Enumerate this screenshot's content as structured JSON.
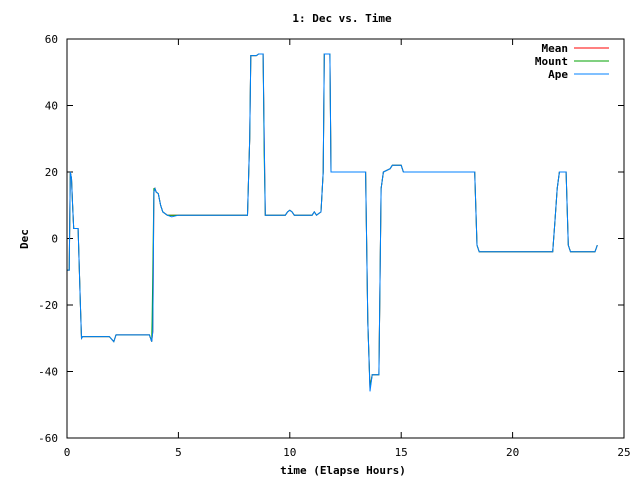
{
  "chart_data": {
    "type": "line",
    "title": "1: Dec vs. Time",
    "xlabel": "time (Elapse Hours)",
    "ylabel": "Dec",
    "xlim": [
      0,
      25
    ],
    "ylim": [
      -60,
      60
    ],
    "xticks": [
      0,
      5,
      10,
      15,
      20,
      25
    ],
    "yticks": [
      -60,
      -40,
      -20,
      0,
      20,
      40,
      60
    ],
    "grid": false,
    "legend_position": "top-right",
    "series": [
      {
        "name": "Mean",
        "color": "#ff0000",
        "points": [
          [
            0,
            -9.5
          ],
          [
            0.1,
            -9.5
          ],
          [
            0.15,
            20
          ],
          [
            0.2,
            18
          ],
          [
            0.25,
            10
          ],
          [
            0.3,
            3
          ],
          [
            0.4,
            3
          ],
          [
            0.5,
            3
          ],
          [
            0.6,
            -20
          ],
          [
            0.65,
            -30
          ],
          [
            0.7,
            -29.5
          ],
          [
            1,
            -29.5
          ],
          [
            1.5,
            -29.5
          ],
          [
            1.9,
            -29.5
          ],
          [
            2.1,
            -31
          ],
          [
            2.2,
            -29
          ],
          [
            2.5,
            -29
          ],
          [
            3,
            -29
          ],
          [
            3.5,
            -29
          ],
          [
            3.7,
            -29
          ],
          [
            3.8,
            -31
          ],
          [
            3.85,
            -28
          ],
          [
            3.9,
            14
          ],
          [
            3.95,
            15
          ],
          [
            4,
            14
          ],
          [
            4.1,
            13.5
          ],
          [
            4.2,
            10
          ],
          [
            4.3,
            8
          ],
          [
            4.5,
            7
          ],
          [
            5,
            7
          ],
          [
            6,
            7
          ],
          [
            7,
            7
          ],
          [
            7.8,
            7
          ],
          [
            8.1,
            7
          ],
          [
            8.2,
            30
          ],
          [
            8.25,
            55
          ],
          [
            8.5,
            55
          ],
          [
            8.6,
            55.5
          ],
          [
            8.8,
            55.5
          ],
          [
            8.85,
            30
          ],
          [
            8.9,
            7
          ],
          [
            9.5,
            7
          ],
          [
            9.8,
            7
          ],
          [
            9.9,
            8
          ],
          [
            10,
            8.5
          ],
          [
            10.1,
            8
          ],
          [
            10.2,
            7
          ],
          [
            10.5,
            7
          ],
          [
            11,
            7
          ],
          [
            11.1,
            8
          ],
          [
            11.2,
            7
          ],
          [
            11.4,
            8
          ],
          [
            11.5,
            20
          ],
          [
            11.55,
            55.5
          ],
          [
            11.8,
            55.5
          ],
          [
            11.85,
            20
          ],
          [
            12,
            20
          ],
          [
            13,
            20
          ],
          [
            13.4,
            20
          ],
          [
            13.5,
            -25
          ],
          [
            13.6,
            -45
          ],
          [
            13.7,
            -41
          ],
          [
            14,
            -41
          ],
          [
            14.1,
            15
          ],
          [
            14.2,
            20
          ],
          [
            14.5,
            21
          ],
          [
            14.6,
            22
          ],
          [
            15,
            22
          ],
          [
            15.1,
            20
          ],
          [
            16,
            20
          ],
          [
            17,
            20
          ],
          [
            18,
            20
          ],
          [
            18.3,
            20
          ],
          [
            18.4,
            -2
          ],
          [
            18.5,
            -4
          ],
          [
            19,
            -4
          ],
          [
            20,
            -4
          ],
          [
            21,
            -4
          ],
          [
            21.8,
            -4
          ],
          [
            21.9,
            5
          ],
          [
            22,
            15
          ],
          [
            22.1,
            20
          ],
          [
            22.4,
            20
          ],
          [
            22.5,
            -2
          ],
          [
            22.6,
            -4
          ],
          [
            23,
            -4
          ],
          [
            23.5,
            -4
          ],
          [
            23.7,
            -4
          ],
          [
            23.8,
            -2
          ]
        ]
      },
      {
        "name": "Mount",
        "color": "#00a000",
        "points": [
          [
            0,
            -9.5
          ],
          [
            0.1,
            -9.5
          ],
          [
            0.15,
            20
          ],
          [
            0.2,
            18
          ],
          [
            0.25,
            10
          ],
          [
            0.3,
            3
          ],
          [
            0.4,
            3
          ],
          [
            0.5,
            3
          ],
          [
            0.6,
            -20
          ],
          [
            0.65,
            -30
          ],
          [
            0.7,
            -29.5
          ],
          [
            1,
            -29.5
          ],
          [
            1.5,
            -29.5
          ],
          [
            1.9,
            -29.5
          ],
          [
            2.1,
            -31
          ],
          [
            2.2,
            -29
          ],
          [
            2.5,
            -29
          ],
          [
            3,
            -29
          ],
          [
            3.5,
            -29
          ],
          [
            3.7,
            -29
          ],
          [
            3.8,
            -31
          ],
          [
            3.82,
            -25
          ],
          [
            3.85,
            -10
          ],
          [
            3.9,
            15
          ],
          [
            3.95,
            15
          ],
          [
            4,
            14
          ],
          [
            4.1,
            13.5
          ],
          [
            4.2,
            10
          ],
          [
            4.3,
            8
          ],
          [
            4.5,
            7
          ],
          [
            5,
            7
          ],
          [
            6,
            7
          ],
          [
            7,
            7
          ],
          [
            7.8,
            7
          ],
          [
            8.1,
            7
          ],
          [
            8.2,
            30
          ],
          [
            8.25,
            55
          ],
          [
            8.5,
            55
          ],
          [
            8.6,
            55.5
          ],
          [
            8.8,
            55.5
          ],
          [
            8.85,
            25
          ],
          [
            8.9,
            7
          ],
          [
            9.5,
            7
          ],
          [
            9.8,
            7
          ],
          [
            9.9,
            8
          ],
          [
            10,
            8.5
          ],
          [
            10.1,
            8
          ],
          [
            10.2,
            7
          ],
          [
            10.5,
            7
          ],
          [
            11,
            7
          ],
          [
            11.1,
            8
          ],
          [
            11.2,
            7
          ],
          [
            11.4,
            8
          ],
          [
            11.5,
            20
          ],
          [
            11.55,
            55.5
          ],
          [
            11.8,
            55.5
          ],
          [
            11.85,
            20
          ],
          [
            12,
            20
          ],
          [
            13,
            20
          ],
          [
            13.4,
            20
          ],
          [
            13.5,
            -25
          ],
          [
            13.6,
            -45
          ],
          [
            13.7,
            -41
          ],
          [
            14,
            -41
          ],
          [
            14.1,
            15
          ],
          [
            14.2,
            20
          ],
          [
            14.5,
            21
          ],
          [
            14.6,
            22
          ],
          [
            15,
            22
          ],
          [
            15.1,
            20
          ],
          [
            16,
            20
          ],
          [
            17,
            20
          ],
          [
            18,
            20
          ],
          [
            18.3,
            20
          ],
          [
            18.4,
            -2
          ],
          [
            18.5,
            -4
          ],
          [
            19,
            -4
          ],
          [
            20,
            -4
          ],
          [
            21,
            -4
          ],
          [
            21.8,
            -4
          ],
          [
            21.9,
            5
          ],
          [
            22,
            15
          ],
          [
            22.1,
            20
          ],
          [
            22.4,
            20
          ],
          [
            22.5,
            -2
          ],
          [
            22.6,
            -4
          ],
          [
            23,
            -4
          ],
          [
            23.5,
            -4
          ],
          [
            23.7,
            -4
          ],
          [
            23.8,
            -2
          ]
        ]
      },
      {
        "name": "Ape",
        "color": "#0080ff",
        "points": [
          [
            0,
            -9.5
          ],
          [
            0.1,
            -9.5
          ],
          [
            0.15,
            20
          ],
          [
            0.2,
            18
          ],
          [
            0.25,
            10
          ],
          [
            0.3,
            3
          ],
          [
            0.4,
            3
          ],
          [
            0.5,
            3
          ],
          [
            0.6,
            -20
          ],
          [
            0.65,
            -30
          ],
          [
            0.7,
            -29.5
          ],
          [
            1,
            -29.5
          ],
          [
            1.5,
            -29.5
          ],
          [
            1.9,
            -29.5
          ],
          [
            2.1,
            -31
          ],
          [
            2.2,
            -29
          ],
          [
            2.5,
            -29
          ],
          [
            3,
            -29
          ],
          [
            3.5,
            -29
          ],
          [
            3.7,
            -29
          ],
          [
            3.8,
            -31
          ],
          [
            3.85,
            -28
          ],
          [
            3.9,
            14
          ],
          [
            3.95,
            15
          ],
          [
            4,
            14
          ],
          [
            4.1,
            13.5
          ],
          [
            4.2,
            10
          ],
          [
            4.3,
            8
          ],
          [
            4.5,
            7
          ],
          [
            4.7,
            6.5
          ],
          [
            5,
            7
          ],
          [
            6,
            7
          ],
          [
            7,
            7
          ],
          [
            7.8,
            7
          ],
          [
            8.1,
            7
          ],
          [
            8.2,
            30
          ],
          [
            8.25,
            55
          ],
          [
            8.5,
            55
          ],
          [
            8.6,
            55.5
          ],
          [
            8.8,
            55.5
          ],
          [
            8.85,
            30
          ],
          [
            8.9,
            7
          ],
          [
            9.5,
            7
          ],
          [
            9.8,
            7
          ],
          [
            9.9,
            8
          ],
          [
            10,
            8.5
          ],
          [
            10.1,
            8
          ],
          [
            10.2,
            7
          ],
          [
            10.5,
            7
          ],
          [
            11,
            7
          ],
          [
            11.1,
            8
          ],
          [
            11.2,
            7
          ],
          [
            11.4,
            8
          ],
          [
            11.5,
            20
          ],
          [
            11.55,
            55.5
          ],
          [
            11.8,
            55.5
          ],
          [
            11.85,
            20
          ],
          [
            12,
            20
          ],
          [
            13,
            20
          ],
          [
            13.4,
            20
          ],
          [
            13.5,
            -25
          ],
          [
            13.6,
            -46
          ],
          [
            13.7,
            -41
          ],
          [
            14,
            -41
          ],
          [
            14.1,
            15
          ],
          [
            14.2,
            20
          ],
          [
            14.5,
            21
          ],
          [
            14.6,
            22
          ],
          [
            15,
            22
          ],
          [
            15.1,
            20
          ],
          [
            16,
            20
          ],
          [
            17,
            20
          ],
          [
            18,
            20
          ],
          [
            18.3,
            20
          ],
          [
            18.4,
            -2
          ],
          [
            18.5,
            -4
          ],
          [
            19,
            -4
          ],
          [
            20,
            -4
          ],
          [
            21,
            -4
          ],
          [
            21.8,
            -4
          ],
          [
            21.9,
            5
          ],
          [
            22,
            15
          ],
          [
            22.1,
            20
          ],
          [
            22.4,
            20
          ],
          [
            22.5,
            -2
          ],
          [
            22.6,
            -4
          ],
          [
            23,
            -4
          ],
          [
            23.5,
            -4
          ],
          [
            23.7,
            -4
          ],
          [
            23.8,
            -2
          ]
        ]
      }
    ]
  }
}
